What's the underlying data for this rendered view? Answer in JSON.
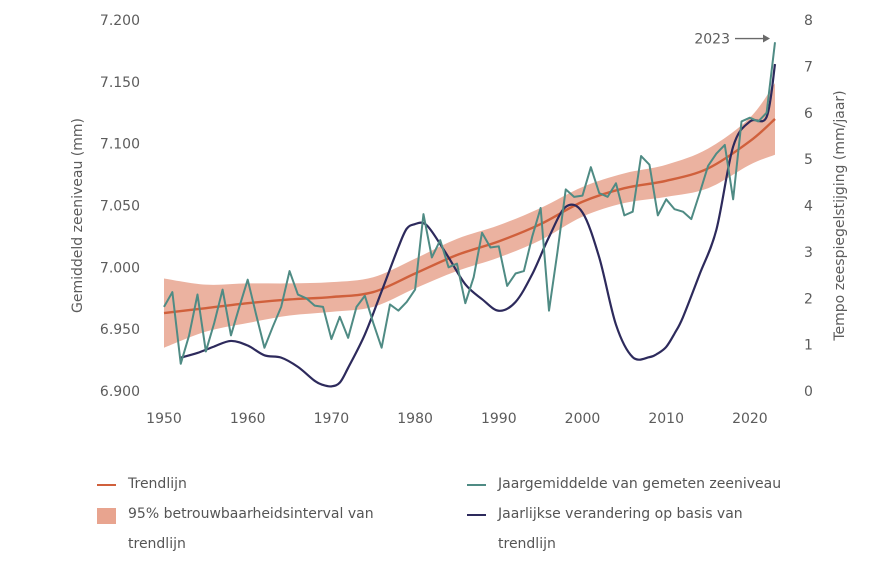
{
  "chart_data": {
    "type": "line",
    "title": "",
    "xlabel": "",
    "ylabel_left": "Gemiddeld zeeniveau (mm)",
    "ylabel_right": "Tempo zeespiegelstijging (mm/jaar)",
    "xlim": [
      1950,
      2023
    ],
    "ylim_left": [
      6.9,
      7.2
    ],
    "ylim_right": [
      0,
      8
    ],
    "x_ticks": [
      1950,
      1960,
      1970,
      1980,
      1990,
      2000,
      2010,
      2020
    ],
    "x_tick_labels": [
      "1950",
      "1960",
      "1970",
      "1980",
      "1990",
      "2000",
      "2010",
      "2020"
    ],
    "y_left_ticks": [
      6.9,
      6.95,
      7.0,
      7.05,
      7.1,
      7.15,
      7.2
    ],
    "y_left_tick_labels": [
      "6.900",
      "6.950",
      "7.000",
      "7.050",
      "7.100",
      "7.150",
      "7.200"
    ],
    "y_right_ticks": [
      0,
      1,
      2,
      3,
      4,
      5,
      6,
      7,
      8
    ],
    "y_right_tick_labels": [
      "0",
      "1",
      "2",
      "3",
      "4",
      "5",
      "6",
      "7",
      "8"
    ],
    "annotation": {
      "text": "2023",
      "x": 2023,
      "y": 7.185
    },
    "series": [
      {
        "name": "Jaargemiddelde van gemeten zeeniveau",
        "axis": "left",
        "color": "#4f8b84",
        "x": [
          1950,
          1951,
          1952,
          1953,
          1954,
          1955,
          1956,
          1957,
          1958,
          1959,
          1960,
          1961,
          1962,
          1963,
          1964,
          1965,
          1966,
          1967,
          1968,
          1969,
          1970,
          1971,
          1972,
          1973,
          1974,
          1975,
          1976,
          1977,
          1978,
          1979,
          1980,
          1981,
          1982,
          1983,
          1984,
          1985,
          1986,
          1987,
          1988,
          1989,
          1990,
          1991,
          1992,
          1993,
          1994,
          1995,
          1996,
          1997,
          1998,
          1999,
          2000,
          2001,
          2002,
          2003,
          2004,
          2005,
          2006,
          2007,
          2008,
          2009,
          2010,
          2011,
          2012,
          2013,
          2014,
          2015,
          2016,
          2017,
          2018,
          2019,
          2020,
          2021,
          2022,
          2023
        ],
        "y": [
          6.968,
          6.98,
          6.922,
          6.945,
          6.978,
          6.932,
          6.955,
          6.982,
          6.945,
          6.968,
          6.99,
          6.962,
          6.935,
          6.952,
          6.968,
          6.997,
          6.978,
          6.975,
          6.969,
          6.968,
          6.942,
          6.96,
          6.943,
          6.968,
          6.977,
          6.955,
          6.935,
          6.97,
          6.965,
          6.972,
          6.982,
          7.043,
          7.008,
          7.022,
          7.0,
          7.003,
          6.971,
          6.992,
          7.028,
          7.016,
          7.017,
          6.985,
          6.995,
          6.997,
          7.025,
          7.048,
          6.965,
          7.012,
          7.063,
          7.057,
          7.058,
          7.081,
          7.06,
          7.057,
          7.068,
          7.042,
          7.045,
          7.09,
          7.083,
          7.042,
          7.055,
          7.047,
          7.045,
          7.039,
          7.06,
          7.082,
          7.092,
          7.099,
          7.055,
          7.118,
          7.121,
          7.118,
          7.125,
          7.182
        ]
      },
      {
        "name": "Trendlijn",
        "axis": "left",
        "color": "#d0603c",
        "x": [
          1950,
          1955,
          1960,
          1965,
          1970,
          1975,
          1980,
          1985,
          1990,
          1995,
          2000,
          2005,
          2010,
          2015,
          2020,
          2023
        ],
        "y": [
          6.963,
          6.967,
          6.971,
          6.974,
          6.976,
          6.98,
          6.995,
          7.01,
          7.021,
          7.035,
          7.053,
          7.064,
          7.07,
          7.08,
          7.102,
          7.12
        ]
      },
      {
        "name": "95% betrouwbaarheidsinterval van trendlijn",
        "axis": "left",
        "color": "#e8a48f",
        "x": [
          1950,
          1955,
          1960,
          1965,
          1970,
          1975,
          1980,
          1985,
          1990,
          1995,
          2000,
          2005,
          2010,
          2015,
          2020,
          2023
        ],
        "lower": [
          6.935,
          6.948,
          6.955,
          6.961,
          6.964,
          6.968,
          6.983,
          6.997,
          7.008,
          7.022,
          7.041,
          7.052,
          7.057,
          7.064,
          7.083,
          7.091
        ],
        "upper": [
          6.991,
          6.986,
          6.987,
          6.987,
          6.988,
          6.992,
          7.007,
          7.023,
          7.034,
          7.048,
          7.065,
          7.076,
          7.083,
          7.096,
          7.121,
          7.149
        ]
      },
      {
        "name": "Jaarlijkse verandering op basis van trendlijn",
        "axis": "right",
        "color": "#2d2a5c",
        "x": [
          1952,
          1954,
          1956,
          1958,
          1960,
          1962,
          1964,
          1966,
          1968,
          1969,
          1970,
          1971,
          1972,
          1974,
          1976,
          1978,
          1979,
          1980,
          1981,
          1982,
          1984,
          1986,
          1988,
          1990,
          1992,
          1994,
          1996,
          1998,
          2000,
          2002,
          2004,
          2006,
          2008,
          2009,
          2010,
          2011,
          2012,
          2014,
          2016,
          2018,
          2020,
          2022,
          2023
        ],
        "y": [
          0.72,
          0.82,
          0.96,
          1.08,
          0.98,
          0.77,
          0.72,
          0.52,
          0.22,
          0.13,
          0.1,
          0.18,
          0.5,
          1.22,
          2.15,
          3.1,
          3.5,
          3.6,
          3.62,
          3.44,
          2.88,
          2.3,
          1.98,
          1.73,
          1.92,
          2.52,
          3.32,
          3.97,
          3.85,
          2.88,
          1.43,
          0.73,
          0.73,
          0.81,
          0.95,
          1.24,
          1.59,
          2.52,
          3.48,
          5.27,
          5.81,
          5.91,
          7.05
        ]
      }
    ],
    "legend": [
      {
        "label_lines": [
          "Trendlijn"
        ],
        "kind": "line",
        "color": "#d0603c"
      },
      {
        "label_lines": [
          "95% betrouwbaarheidsinterval van",
          "trendlijn"
        ],
        "kind": "band",
        "color": "#e8a48f"
      },
      {
        "label_lines": [
          "Jaargemiddelde van gemeten zeeniveau"
        ],
        "kind": "line",
        "color": "#4f8b84"
      },
      {
        "label_lines": [
          "Jaarlijkse verandering op basis van",
          "trendlijn"
        ],
        "kind": "line",
        "color": "#2d2a5c"
      }
    ]
  }
}
